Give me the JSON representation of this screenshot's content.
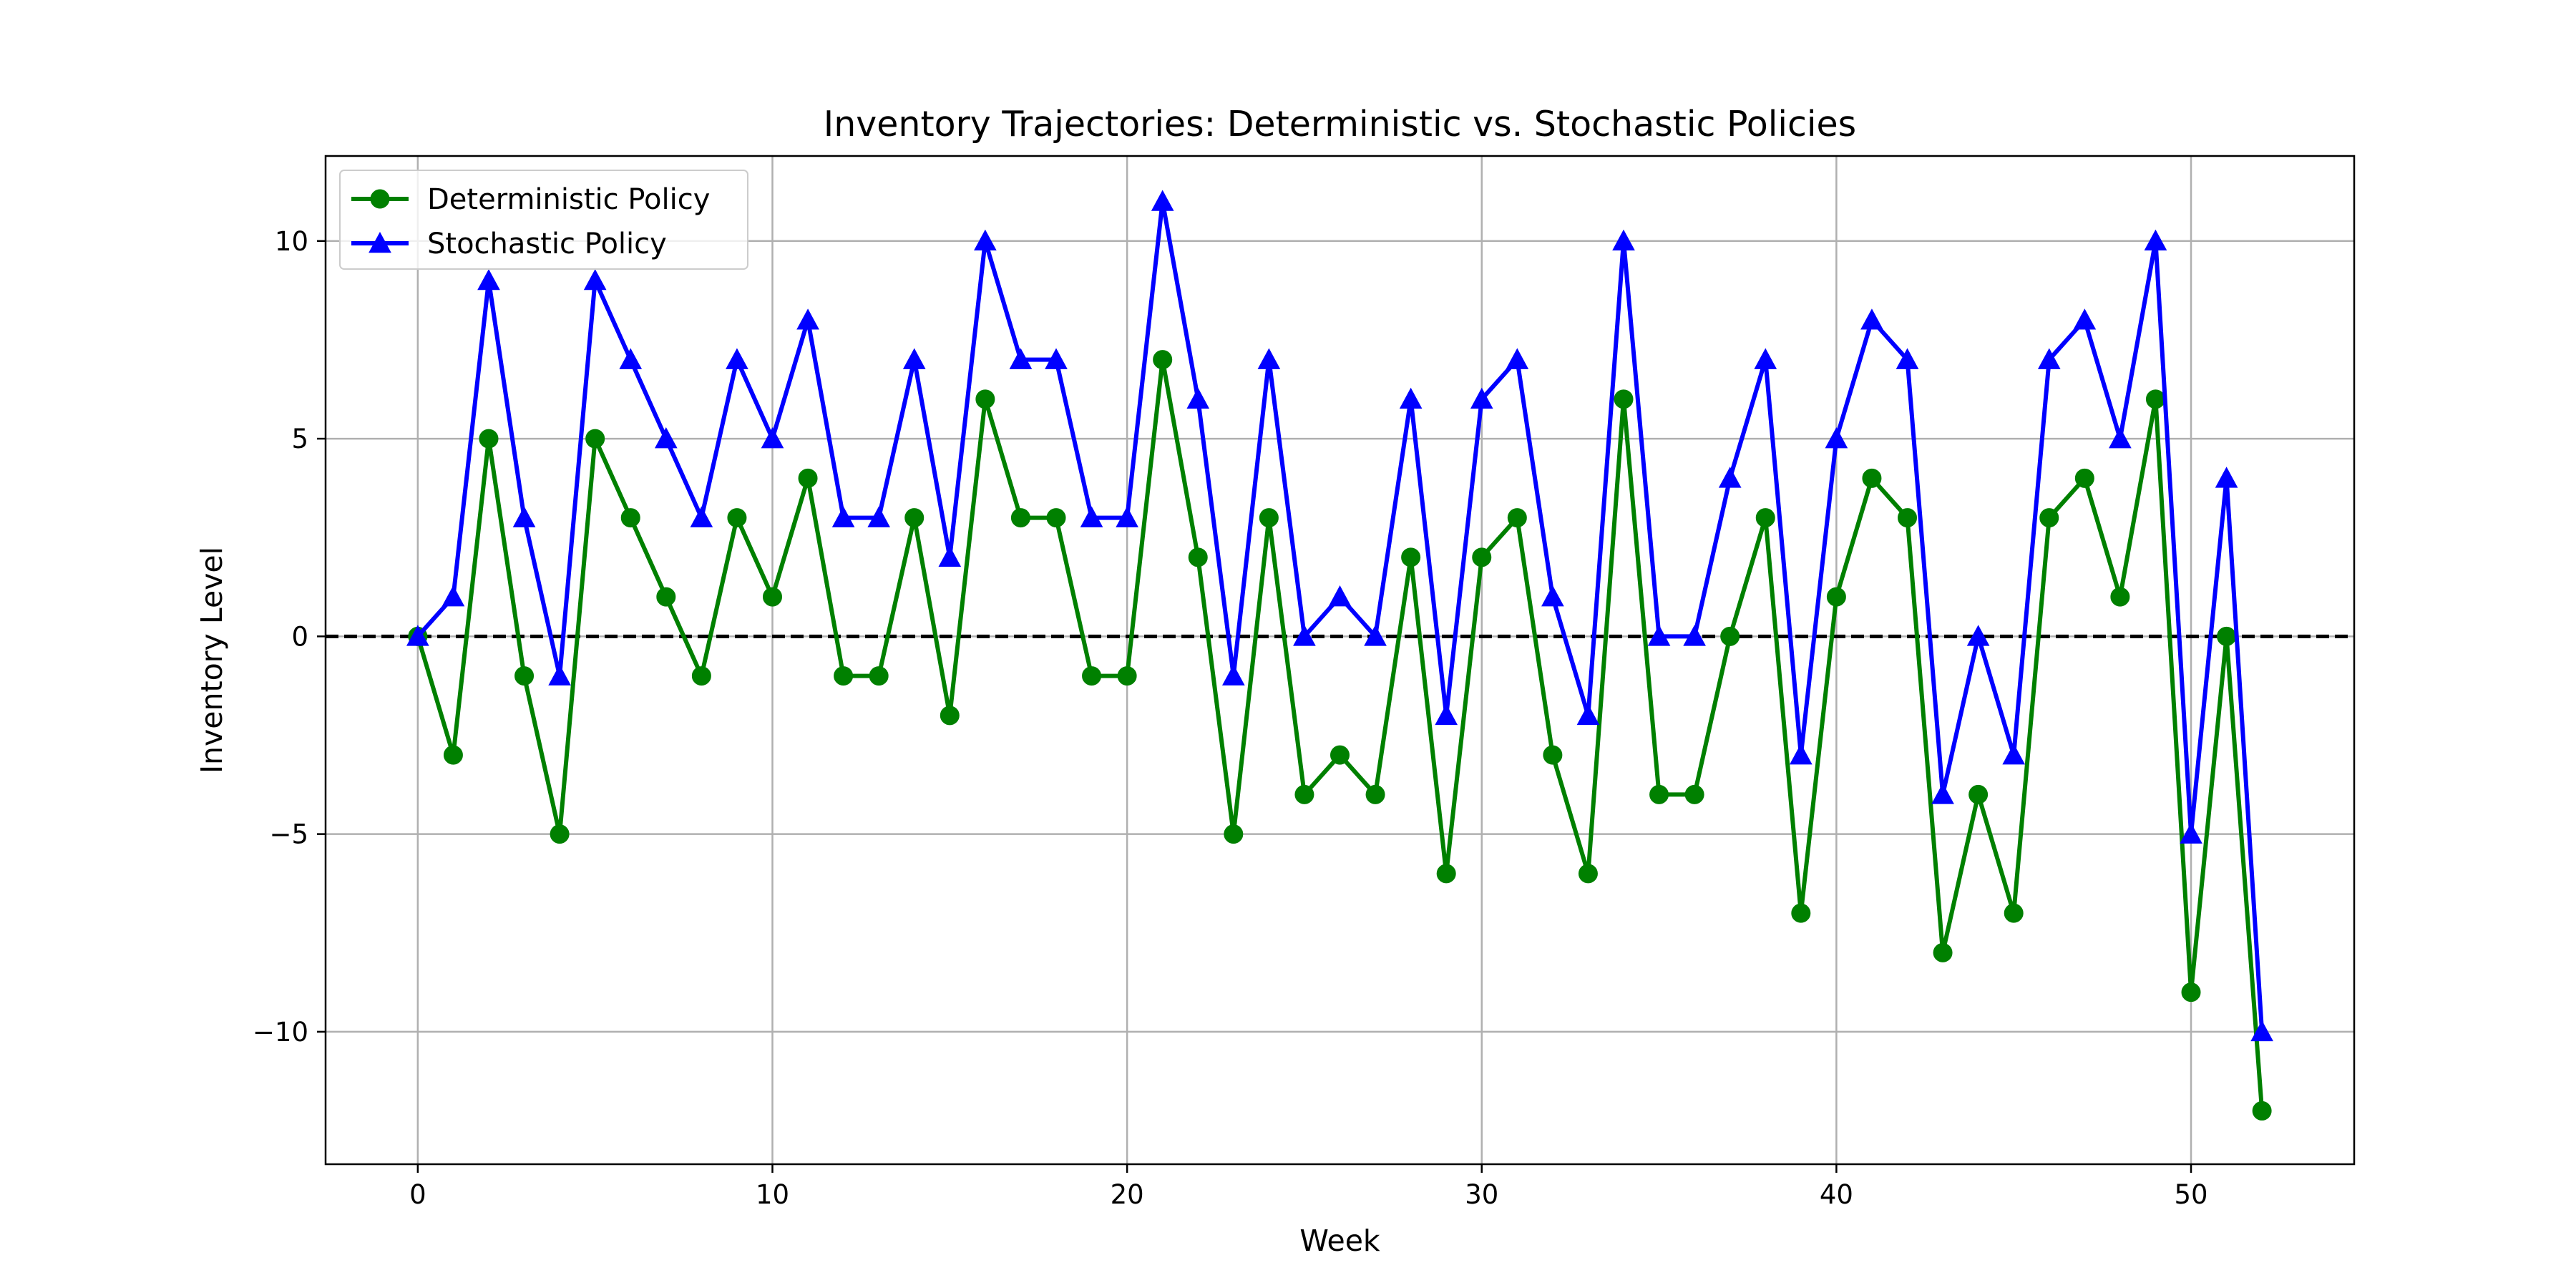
{
  "chart_data": {
    "type": "line",
    "title": "Inventory Trajectories: Deterministic vs. Stochastic Policies",
    "xlabel": "Week",
    "ylabel": "Inventory Level",
    "xlim": [
      -2.6,
      54.6
    ],
    "ylim": [
      -13.35,
      12.15
    ],
    "x_ticks": [
      0,
      10,
      20,
      30,
      40,
      50
    ],
    "y_ticks": [
      -10,
      -5,
      0,
      5,
      10
    ],
    "x_tick_labels": [
      "0",
      "10",
      "20",
      "30",
      "40",
      "50"
    ],
    "y_tick_labels": [
      "−10",
      "−5",
      "0",
      "5",
      "10"
    ],
    "grid": true,
    "legend_position": "top-left",
    "reference_line": {
      "y": 0,
      "style": "dashed",
      "color": "#000000"
    },
    "x": [
      0,
      1,
      2,
      3,
      4,
      5,
      6,
      7,
      8,
      9,
      10,
      11,
      12,
      13,
      14,
      15,
      16,
      17,
      18,
      19,
      20,
      21,
      22,
      23,
      24,
      25,
      26,
      27,
      28,
      29,
      30,
      31,
      32,
      33,
      34,
      35,
      36,
      37,
      38,
      39,
      40,
      41,
      42,
      43,
      44,
      45,
      46,
      47,
      48,
      49,
      50,
      51,
      52
    ],
    "series": [
      {
        "name": "Deterministic Policy",
        "color": "#008000",
        "marker": "circle",
        "values": [
          0,
          -3,
          5,
          -1,
          -5,
          5,
          3,
          1,
          -1,
          3,
          1,
          4,
          -1,
          -1,
          3,
          -2,
          6,
          3,
          3,
          -1,
          -1,
          7,
          2,
          -5,
          3,
          -4,
          -3,
          -4,
          2,
          -6,
          2,
          3,
          -3,
          -6,
          6,
          -4,
          -4,
          0,
          3,
          -7,
          1,
          4,
          3,
          -8,
          -4,
          -7,
          3,
          4,
          1,
          6,
          -9,
          0,
          -12
        ]
      },
      {
        "name": "Stochastic Policy",
        "color": "#0000ff",
        "marker": "triangle",
        "values": [
          0,
          1,
          9,
          3,
          -1,
          9,
          7,
          5,
          3,
          7,
          5,
          8,
          3,
          3,
          7,
          2,
          10,
          7,
          7,
          3,
          3,
          11,
          6,
          -1,
          7,
          0,
          1,
          0,
          6,
          -2,
          6,
          7,
          1,
          -2,
          10,
          0,
          0,
          4,
          7,
          -3,
          5,
          8,
          7,
          -4,
          0,
          -3,
          7,
          8,
          5,
          10,
          -5,
          4,
          -10
        ]
      }
    ]
  }
}
